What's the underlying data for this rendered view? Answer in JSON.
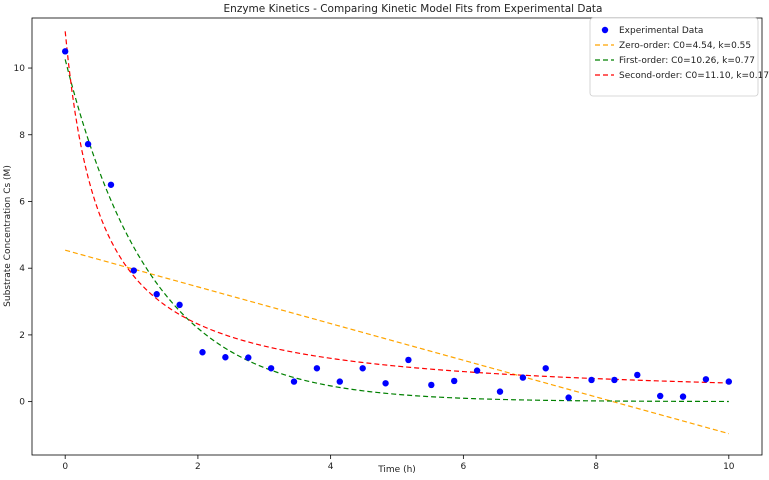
{
  "chart_data": {
    "type": "line",
    "title": "Enzyme Kinetics - Comparing Kinetic Model Fits from Experimental Data",
    "xlabel": "Time (h)",
    "ylabel": "Substrate Concentration Cs (M)",
    "xlim": [
      -0.5,
      10.5
    ],
    "ylim": [
      -1.6,
      11.5
    ],
    "xticks": [
      0,
      2,
      4,
      6,
      8,
      10
    ],
    "yticks": [
      0,
      2,
      4,
      6,
      8,
      10
    ],
    "grid": false,
    "legend_position": "top-right",
    "scatter": {
      "name": "Experimental Data",
      "color": "#0000ff",
      "x": [
        0,
        0.345,
        0.69,
        1.034,
        1.379,
        1.724,
        2.069,
        2.414,
        2.759,
        3.103,
        3.448,
        3.793,
        4.138,
        4.483,
        4.828,
        5.172,
        5.517,
        5.862,
        6.207,
        6.552,
        6.897,
        7.241,
        7.586,
        7.931,
        8.276,
        8.621,
        8.966,
        9.31,
        9.655,
        10
      ],
      "y": [
        10.5,
        7.72,
        6.5,
        3.93,
        3.22,
        2.9,
        1.48,
        1.33,
        1.32,
        1.0,
        0.6,
        1.0,
        0.6,
        1.0,
        0.55,
        1.25,
        0.5,
        0.62,
        0.93,
        0.3,
        0.72,
        1.0,
        0.12,
        0.65,
        0.65,
        0.8,
        0.17,
        0.15,
        0.67,
        0.6
      ]
    },
    "series": [
      {
        "name": "Zero-order: C0=4.54, k=0.55",
        "model": "zero",
        "C0": 4.54,
        "k": 0.55,
        "color": "#ffa500"
      },
      {
        "name": "First-order: C0=10.26, k=0.77",
        "model": "first",
        "C0": 10.26,
        "k": 0.77,
        "color": "#008000"
      },
      {
        "name": "Second-order: C0=11.10, k=0.17",
        "model": "second",
        "C0": 11.1,
        "k": 0.17,
        "color": "#ff0000"
      }
    ]
  }
}
